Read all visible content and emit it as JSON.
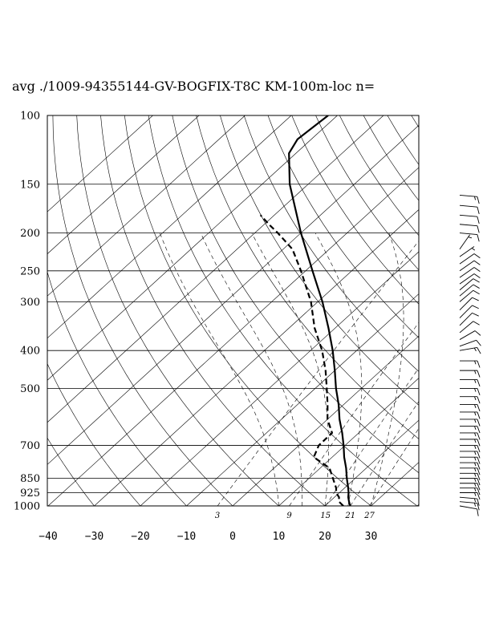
{
  "title": "avg ./1009-94355144-GV-BOGFIX-T8C KM-100m-loc n=",
  "colors": {
    "line": "#000000",
    "background": "#ffffff"
  },
  "chart_data": {
    "type": "skew-t log-p",
    "title": "avg ./1009-94355144-GV-BOGFIX-T8C KM-100m-loc n=",
    "xlabel": "",
    "ylabel": "",
    "xlim": [
      -40,
      40
    ],
    "ylim": [
      1000,
      100
    ],
    "y_scale": "log",
    "grid": true,
    "pressure_ticks": [
      {
        "p": 100,
        "label": "100"
      },
      {
        "p": 150,
        "label": "150"
      },
      {
        "p": 200,
        "label": "200"
      },
      {
        "p": 250,
        "label": "250"
      },
      {
        "p": 300,
        "label": "300"
      },
      {
        "p": 400,
        "label": "400"
      },
      {
        "p": 500,
        "label": "500"
      },
      {
        "p": 700,
        "label": "700"
      },
      {
        "p": 850,
        "label": "850"
      },
      {
        "p": 925,
        "label": "925"
      },
      {
        "p": 1000,
        "label": "1000"
      }
    ],
    "temperature_ticks": [
      {
        "t": -40,
        "label": "−40"
      },
      {
        "t": -30,
        "label": "−30"
      },
      {
        "t": -20,
        "label": "−20"
      },
      {
        "t": -10,
        "label": "−10"
      },
      {
        "t": 0,
        "label": "0"
      },
      {
        "t": 10,
        "label": "10"
      },
      {
        "t": 20,
        "label": "20"
      },
      {
        "t": 30,
        "label": "30"
      }
    ],
    "mixing_ratio_labels": [
      {
        "w": 3,
        "label": "3"
      },
      {
        "w": 9,
        "label": "9"
      },
      {
        "w": 15,
        "label": "15"
      },
      {
        "w": 21,
        "label": "21"
      },
      {
        "w": 27,
        "label": "27"
      }
    ],
    "temperature_profile": [
      {
        "p": 1000,
        "t": 25.5
      },
      {
        "p": 975,
        "t": 24.2
      },
      {
        "p": 950,
        "t": 23.0
      },
      {
        "p": 925,
        "t": 22.0
      },
      {
        "p": 900,
        "t": 20.8
      },
      {
        "p": 850,
        "t": 18.2
      },
      {
        "p": 800,
        "t": 15.6
      },
      {
        "p": 750,
        "t": 12.6
      },
      {
        "p": 700,
        "t": 9.7
      },
      {
        "p": 650,
        "t": 6.4
      },
      {
        "p": 600,
        "t": 2.6
      },
      {
        "p": 550,
        "t": -1.1
      },
      {
        "p": 500,
        "t": -5.5
      },
      {
        "p": 450,
        "t": -10.0
      },
      {
        "p": 400,
        "t": -15.2
      },
      {
        "p": 350,
        "t": -21.5
      },
      {
        "p": 300,
        "t": -29.0
      },
      {
        "p": 250,
        "t": -38.5
      },
      {
        "p": 200,
        "t": -50.0
      },
      {
        "p": 175,
        "t": -56.5
      },
      {
        "p": 150,
        "t": -64.0
      },
      {
        "p": 125,
        "t": -71.5
      },
      {
        "p": 115,
        "t": -73.0
      },
      {
        "p": 100,
        "t": -72.0
      }
    ],
    "dewpoint_profile": [
      {
        "p": 1000,
        "t": 24.0
      },
      {
        "p": 975,
        "t": 22.0
      },
      {
        "p": 950,
        "t": 21.0
      },
      {
        "p": 925,
        "t": 19.3
      },
      {
        "p": 900,
        "t": 18.2
      },
      {
        "p": 850,
        "t": 15.2
      },
      {
        "p": 800,
        "t": 12.0
      },
      {
        "p": 750,
        "t": 6.0
      },
      {
        "p": 700,
        "t": 4.3
      },
      {
        "p": 650,
        "t": 4.2
      },
      {
        "p": 600,
        "t": 0.0
      },
      {
        "p": 550,
        "t": -3.5
      },
      {
        "p": 500,
        "t": -7.5
      },
      {
        "p": 450,
        "t": -12.0
      },
      {
        "p": 400,
        "t": -17.5
      },
      {
        "p": 350,
        "t": -24.5
      },
      {
        "p": 300,
        "t": -31.5
      },
      {
        "p": 250,
        "t": -41.0
      },
      {
        "p": 220,
        "t": -48.0
      },
      {
        "p": 200,
        "t": -55.0
      },
      {
        "p": 190,
        "t": -59.0
      },
      {
        "p": 180,
        "t": -63.0
      }
    ],
    "wind_barbs": [
      {
        "p": 1000,
        "dir": 100,
        "spd": 10
      },
      {
        "p": 975,
        "dir": 95,
        "spd": 15
      },
      {
        "p": 950,
        "dir": 95,
        "spd": 15
      },
      {
        "p": 925,
        "dir": 90,
        "spd": 15
      },
      {
        "p": 900,
        "dir": 90,
        "spd": 15
      },
      {
        "p": 875,
        "dir": 90,
        "spd": 15
      },
      {
        "p": 850,
        "dir": 90,
        "spd": 15
      },
      {
        "p": 825,
        "dir": 90,
        "spd": 15
      },
      {
        "p": 800,
        "dir": 90,
        "spd": 15
      },
      {
        "p": 775,
        "dir": 90,
        "spd": 15
      },
      {
        "p": 750,
        "dir": 90,
        "spd": 15
      },
      {
        "p": 725,
        "dir": 90,
        "spd": 15
      },
      {
        "p": 700,
        "dir": 90,
        "spd": 15
      },
      {
        "p": 675,
        "dir": 90,
        "spd": 15
      },
      {
        "p": 650,
        "dir": 90,
        "spd": 15
      },
      {
        "p": 625,
        "dir": 90,
        "spd": 15
      },
      {
        "p": 600,
        "dir": 90,
        "spd": 15
      },
      {
        "p": 575,
        "dir": 90,
        "spd": 15
      },
      {
        "p": 550,
        "dir": 90,
        "spd": 15
      },
      {
        "p": 525,
        "dir": 90,
        "spd": 15
      },
      {
        "p": 500,
        "dir": 90,
        "spd": 15
      },
      {
        "p": 475,
        "dir": 90,
        "spd": 15
      },
      {
        "p": 450,
        "dir": 90,
        "spd": 15
      },
      {
        "p": 425,
        "dir": 90,
        "spd": 15
      },
      {
        "p": 400,
        "dir": 80,
        "spd": 15
      },
      {
        "p": 390,
        "dir": 70,
        "spd": 10
      },
      {
        "p": 375,
        "dir": 60,
        "spd": 10
      },
      {
        "p": 360,
        "dir": 50,
        "spd": 10
      },
      {
        "p": 345,
        "dir": 45,
        "spd": 10
      },
      {
        "p": 330,
        "dir": 45,
        "spd": 10
      },
      {
        "p": 315,
        "dir": 45,
        "spd": 10
      },
      {
        "p": 300,
        "dir": 50,
        "spd": 10
      },
      {
        "p": 290,
        "dir": 50,
        "spd": 10
      },
      {
        "p": 280,
        "dir": 50,
        "spd": 10
      },
      {
        "p": 270,
        "dir": 55,
        "spd": 10
      },
      {
        "p": 260,
        "dir": 55,
        "spd": 10
      },
      {
        "p": 250,
        "dir": 55,
        "spd": 10
      },
      {
        "p": 240,
        "dir": 55,
        "spd": 10
      },
      {
        "p": 230,
        "dir": 55,
        "spd": 5
      },
      {
        "p": 220,
        "dir": 35,
        "spd": 5
      },
      {
        "p": 200,
        "dir": 95,
        "spd": 10
      },
      {
        "p": 190,
        "dir": 95,
        "spd": 10
      },
      {
        "p": 180,
        "dir": 95,
        "spd": 10
      },
      {
        "p": 170,
        "dir": 95,
        "spd": 10
      },
      {
        "p": 160,
        "dir": 95,
        "spd": 15
      }
    ]
  }
}
